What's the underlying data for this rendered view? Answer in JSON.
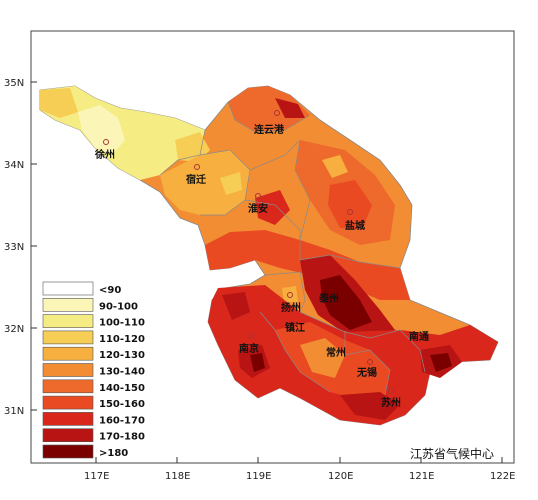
{
  "map": {
    "credit": "江苏省气候中心",
    "lat_ticks": [
      "35N",
      "34N",
      "33N",
      "32N",
      "31N"
    ],
    "lon_ticks": [
      "117E",
      "118E",
      "119E",
      "120E",
      "121E",
      "122E"
    ],
    "cities": [
      {
        "key": "lianyungang",
        "name": "连云港"
      },
      {
        "key": "xuzhou",
        "name": "徐州"
      },
      {
        "key": "suqian",
        "name": "宿迁"
      },
      {
        "key": "huaian",
        "name": "淮安"
      },
      {
        "key": "yancheng",
        "name": "盐城"
      },
      {
        "key": "taizhou",
        "name": "泰州"
      },
      {
        "key": "yangzhou",
        "name": "扬州"
      },
      {
        "key": "zhenjiang",
        "name": "镇江"
      },
      {
        "key": "nantong",
        "name": "南通"
      },
      {
        "key": "nanjing",
        "name": "南京"
      },
      {
        "key": "changzhou",
        "name": "常州"
      },
      {
        "key": "wuxi",
        "name": "无锡"
      },
      {
        "key": "suzhou",
        "name": "苏州"
      }
    ],
    "legend": [
      {
        "label": "<90",
        "color": "#ffffff"
      },
      {
        "label": "90-100",
        "color": "#fbf6b7"
      },
      {
        "label": "100-110",
        "color": "#f5ec84"
      },
      {
        "label": "110-120",
        "color": "#f7ce55"
      },
      {
        "label": "120-130",
        "color": "#f7b03f"
      },
      {
        "label": "130-140",
        "color": "#f28d33"
      },
      {
        "label": "140-150",
        "color": "#ee6a2c"
      },
      {
        "label": "150-160",
        "color": "#e94a22"
      },
      {
        "label": "160-170",
        "color": "#d9271c"
      },
      {
        "label": "170-180",
        "color": "#b81414"
      },
      {
        "label": ">180",
        "color": "#7a0000"
      }
    ]
  }
}
